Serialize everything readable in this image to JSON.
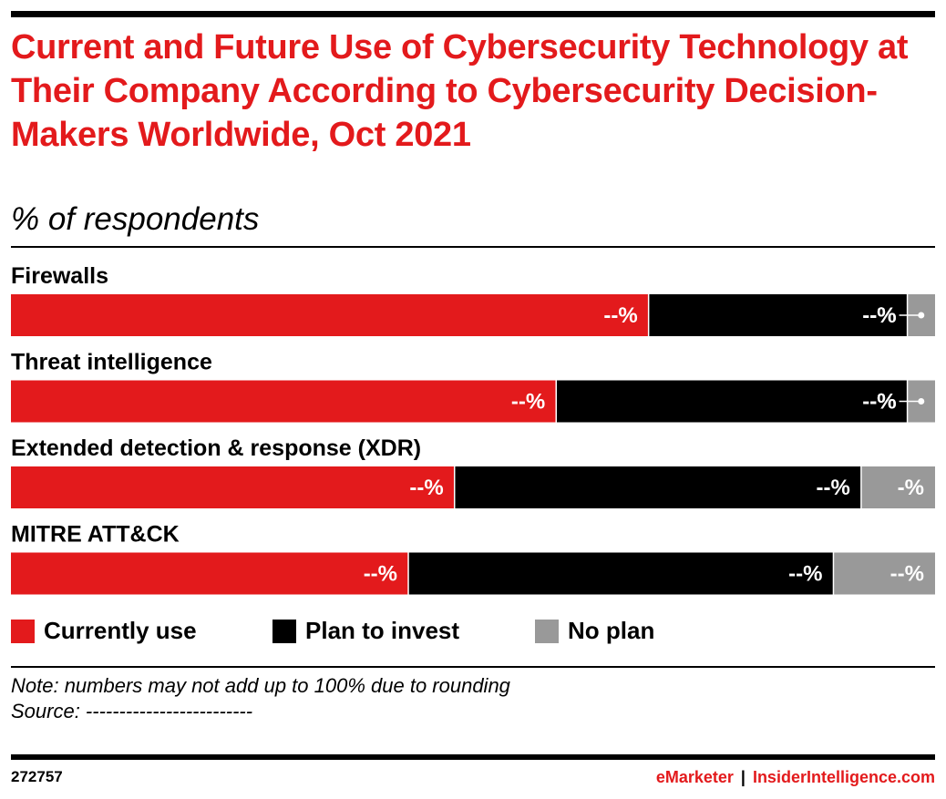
{
  "header": {
    "title": "Current and Future Use of Cybersecurity Technology at Their Company According to Cybersecurity Decision-Makers Worldwide, Oct 2021",
    "subtitle": "% of respondents"
  },
  "chart_data": {
    "type": "bar",
    "orientation": "horizontal",
    "stacked": true,
    "categories": [
      "Firewalls",
      "Threat intelligence",
      "Extended detection & response (XDR)",
      "MITRE ATT&CK"
    ],
    "series": [
      {
        "name": "Currently use",
        "color": "#e31a1c",
        "values": [
          69,
          59,
          48,
          43
        ],
        "labels": [
          "--%",
          "--%",
          "--%",
          "--%"
        ]
      },
      {
        "name": "Plan to invest",
        "color": "#000000",
        "values": [
          28,
          38,
          44,
          46
        ],
        "labels": [
          "--%",
          "--%",
          "--%",
          "--%"
        ]
      },
      {
        "name": "No plan",
        "color": "#999999",
        "values": [
          3,
          3,
          8,
          10
        ],
        "labels": [
          "-%",
          "-%",
          "-%",
          "--%"
        ]
      }
    ],
    "xlim": [
      0,
      100
    ],
    "legend_position": "bottom",
    "grid": false
  },
  "legend": {
    "items": [
      {
        "label": "Currently use",
        "color": "#e31a1c"
      },
      {
        "label": "Plan to invest",
        "color": "#000000"
      },
      {
        "label": "No plan",
        "color": "#999999"
      }
    ]
  },
  "notes": {
    "note": "Note: numbers may not add up to 100% due to rounding",
    "source": "Source: -------------------------"
  },
  "footer": {
    "chart_id": "272757",
    "brand": "eMarketer",
    "separator": "|",
    "site": "InsiderIntelligence.com"
  }
}
